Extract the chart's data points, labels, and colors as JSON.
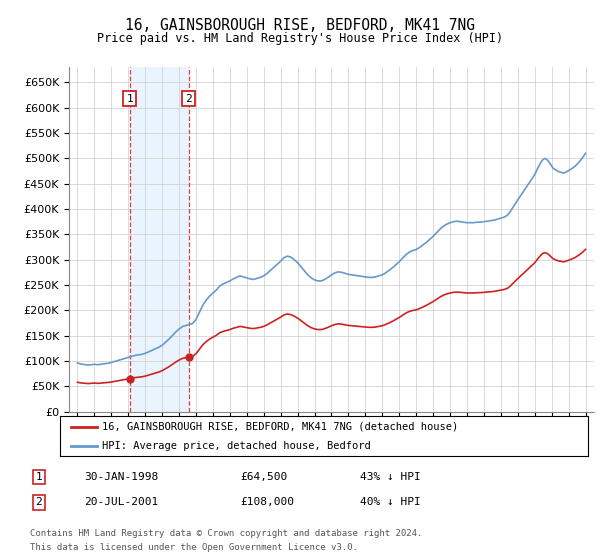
{
  "title": "16, GAINSBOROUGH RISE, BEDFORD, MK41 7NG",
  "subtitle": "Price paid vs. HM Land Registry's House Price Index (HPI)",
  "ylabel_ticks": [
    "£0",
    "£50K",
    "£100K",
    "£150K",
    "£200K",
    "£250K",
    "£300K",
    "£350K",
    "£400K",
    "£450K",
    "£500K",
    "£550K",
    "£600K",
    "£650K"
  ],
  "ytick_values": [
    0,
    50000,
    100000,
    150000,
    200000,
    250000,
    300000,
    350000,
    400000,
    450000,
    500000,
    550000,
    600000,
    650000
  ],
  "ylim": [
    0,
    680000
  ],
  "hpi_color": "#6699cc",
  "price_color": "#cc2222",
  "t1_date": 1998.08,
  "t1_price": 64500,
  "t2_date": 2001.56,
  "t2_price": 108000,
  "legend_line1": "16, GAINSBOROUGH RISE, BEDFORD, MK41 7NG (detached house)",
  "legend_line2": "HPI: Average price, detached house, Bedford",
  "table_row1_label": "1",
  "table_row1_date": "30-JAN-1998",
  "table_row1_price": "£64,500",
  "table_row1_hpi": "43% ↓ HPI",
  "table_row2_label": "2",
  "table_row2_date": "20-JUL-2001",
  "table_row2_price": "£108,000",
  "table_row2_hpi": "40% ↓ HPI",
  "footnote1": "Contains HM Land Registry data © Crown copyright and database right 2024.",
  "footnote2": "This data is licensed under the Open Government Licence v3.0.",
  "background_color": "#ffffff",
  "grid_color": "#cccccc",
  "highlight_color": "#ddeeff",
  "xlim_left": 1994.5,
  "xlim_right": 2025.5
}
